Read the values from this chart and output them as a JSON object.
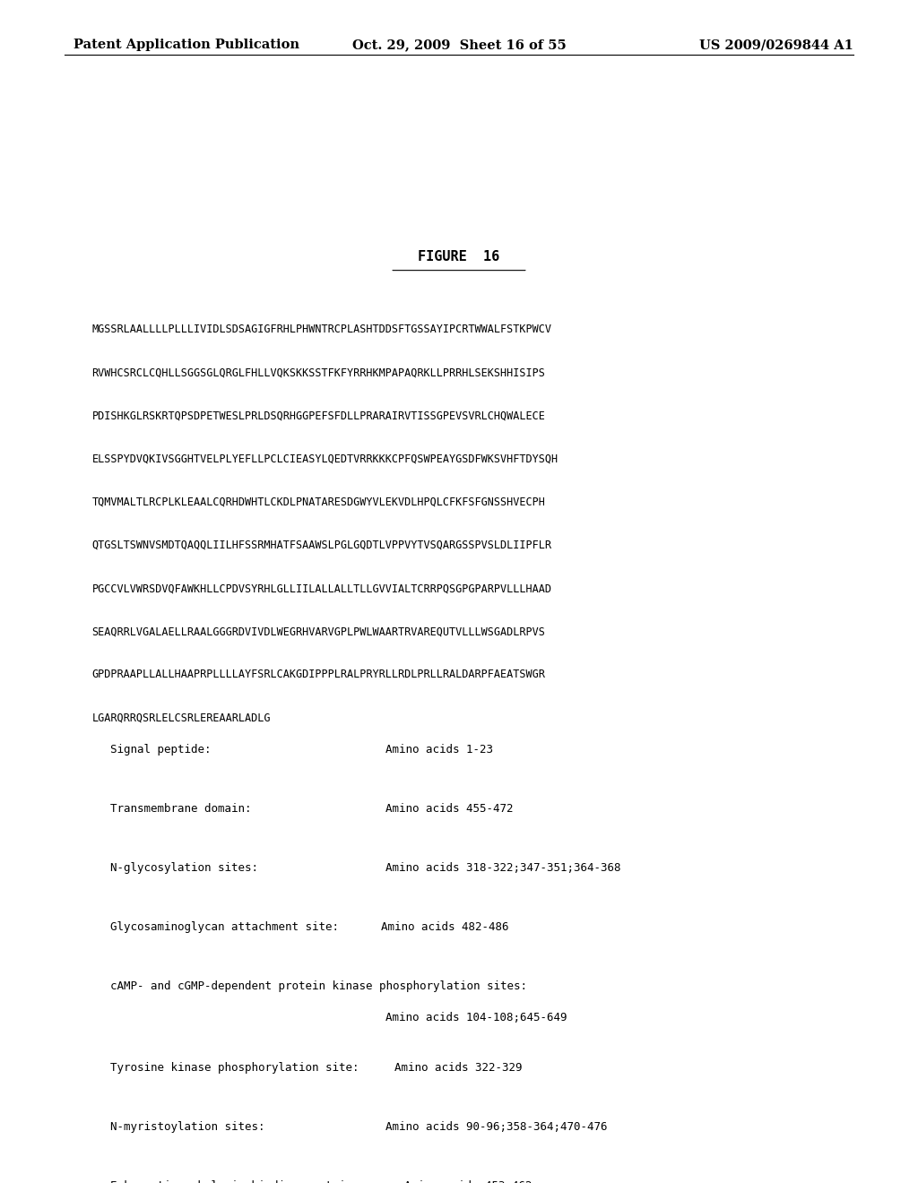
{
  "header_left": "Patent Application Publication",
  "header_mid": "Oct. 29, 2009  Sheet 16 of 55",
  "header_right": "US 2009/0269844 A1",
  "figure_title": "FIGURE  16",
  "sequence_lines": [
    "MGSSRLAALLLLPLLLIVIDLSDSAGIGFRHLPHWNTRCPLASHTDDSFTGSSAYIPCRTWWALFSTKPWCV",
    "RVWHCSRCLCQHLLSGGSGLQRGLFHLLVQKSKKSSTFKFYRRHKMPAPAQRKLLPRRHLSEKSHHISIPS",
    "PDISHKGLRSKRTQPSDPETWESLPRLDSQRHGGPEFSFDLLPRARAIRVTISSGPEVSVRLCHQWALECE",
    "ELSSPYDVQKIVSGGHTVELPLYEFLLPCLCIEASYLQEDTVRRKKKCPFQSWPEAYGSDFWKSVHFTDYSQH",
    "TQMVMALTLRCPLKLEAALCQRHDWHTLCKDLPNATARESDGWYVLEKVDLHPQLCFKFSFGNSSHVECPH",
    "QTGSLTSWNVSMDTQAQQLIILHFSSRMHATFSAAWSLPGLGQDTLVPPVYTVSQARGSSPVSLDLIIPFLR",
    "PGCCVLVWRSDVQFAWKHLLCPDVSYRHLGLLIILALLALLTLLGVVIALTCRRPQSGPGPARPVLLLHAAD",
    "SEAQRRLVGALAELLRAALGGGRDVIVDLWEGRHVARVGPLPWLWAARTRVAREQUTVLLLWSGADLRPVS",
    "GPDPRAAPLLALLHAAPRPLLLLAYFSRLCAKGDIPPPLRALPRYRLLRDLPRLLRALDARPFAEATSWGR",
    "LGARQRRQSRLELCSRLEREAARLADLG"
  ],
  "bg_color": "#ffffff",
  "text_color": "#000000",
  "header_fontsize": 10.5,
  "title_fontsize": 11,
  "seq_fontsize": 8.5,
  "annot_fontsize": 9
}
